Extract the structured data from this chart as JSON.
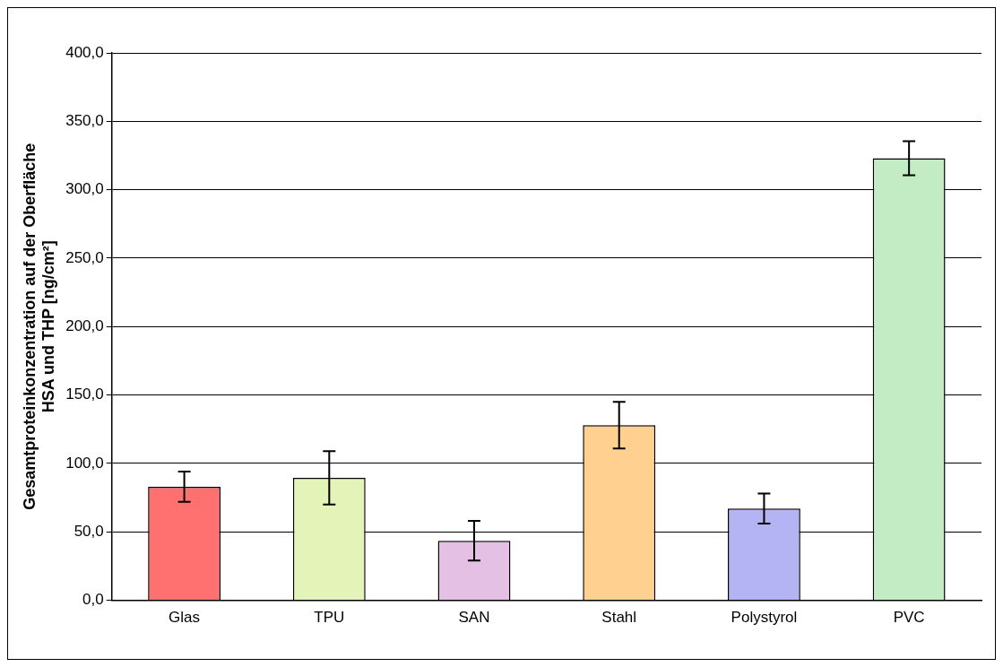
{
  "chart_data": {
    "type": "bar",
    "ylabel": "Gesamtproteinkonzentration auf der Oberfläche\nHSA und THP [ng/cm²]",
    "categories": [
      "Glas",
      "TPU",
      "SAN",
      "Stahl",
      "Polystyrol",
      "PVC"
    ],
    "values": [
      83,
      89.5,
      43.5,
      128,
      67,
      323
    ],
    "errors": [
      11,
      19.5,
      14.5,
      17,
      11,
      12.5
    ],
    "colors": [
      "#ff7070",
      "#e4f4b8",
      "#e4c0e4",
      "#ffd090",
      "#b4b4f4",
      "#c4ecc4"
    ],
    "ylim": [
      0,
      400
    ],
    "yticks": [
      {
        "value": 0,
        "label": "0,0"
      },
      {
        "value": 50,
        "label": "50,0"
      },
      {
        "value": 100,
        "label": "100,0"
      },
      {
        "value": 150,
        "label": "150,0"
      },
      {
        "value": 200,
        "label": "200,0"
      },
      {
        "value": 250,
        "label": "250,0"
      },
      {
        "value": 300,
        "label": "300,0"
      },
      {
        "value": 350,
        "label": "350,0"
      },
      {
        "value": 400,
        "label": "400,0"
      }
    ],
    "grid": "y",
    "legend": false
  }
}
